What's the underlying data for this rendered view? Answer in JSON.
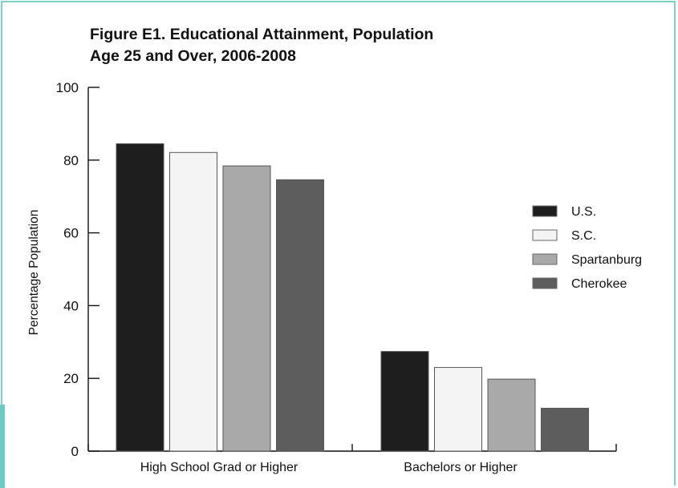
{
  "chart_data": {
    "type": "bar",
    "title_lines": [
      "Figure E1.   Educational Attainment, Population",
      "Age 25 and Over, 2006-2008"
    ],
    "xlabel": "",
    "ylabel": "Percentage Population",
    "ylim": [
      0,
      100
    ],
    "yticks": [
      "0",
      "20",
      "40",
      "60",
      "80",
      "100"
    ],
    "categories": [
      "High School Grad or Higher",
      "Bachelors or Higher"
    ],
    "series": [
      {
        "name": "U.S.",
        "values": [
          84.5,
          27.4
        ],
        "color": "#1e1e1e"
      },
      {
        "name": "S.C.",
        "values": [
          82.1,
          23.0
        ],
        "color": "#f4f4f4"
      },
      {
        "name": "Spartanburg",
        "values": [
          78.4,
          19.8
        ],
        "color": "#a9a9a9"
      },
      {
        "name": "Cherokee",
        "values": [
          74.6,
          11.8
        ],
        "color": "#5d5d5d"
      }
    ],
    "grid": false,
    "legend_position": "right"
  },
  "colors": {
    "frame_border": "#7fd0c9",
    "accent": "#6dc9c2"
  }
}
